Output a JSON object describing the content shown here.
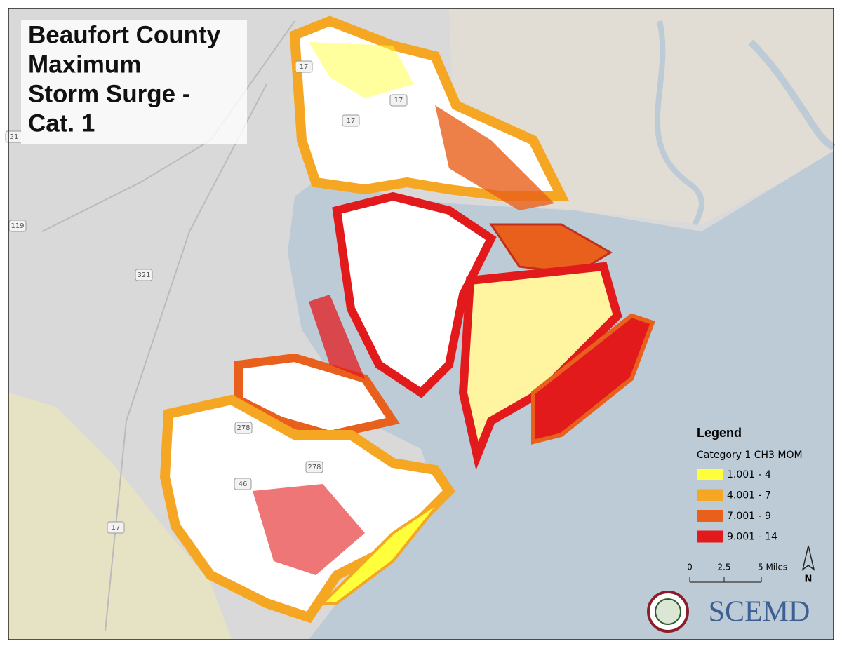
{
  "title_lines": [
    "Beaufort County",
    "Maximum",
    "Storm Surge -",
    "Cat. 1"
  ],
  "legend": {
    "title": "Legend",
    "subtitle": "Category 1 CH3 MOM",
    "items": [
      {
        "label": "1.001 - 4",
        "color": "#ffff3c"
      },
      {
        "label": "4.001 - 7",
        "color": "#f5a623"
      },
      {
        "label": "7.001 - 9",
        "color": "#e8601c"
      },
      {
        "label": "9.001 - 14",
        "color": "#e31a1c"
      }
    ]
  },
  "scale_bar": {
    "labels": [
      "0",
      "2.5",
      "5 Miles"
    ]
  },
  "north": "N",
  "logo": "SCEMD",
  "road_labels": [
    "17",
    "17",
    "17",
    "21",
    "119",
    "321",
    "278",
    "278",
    "46",
    "17"
  ]
}
